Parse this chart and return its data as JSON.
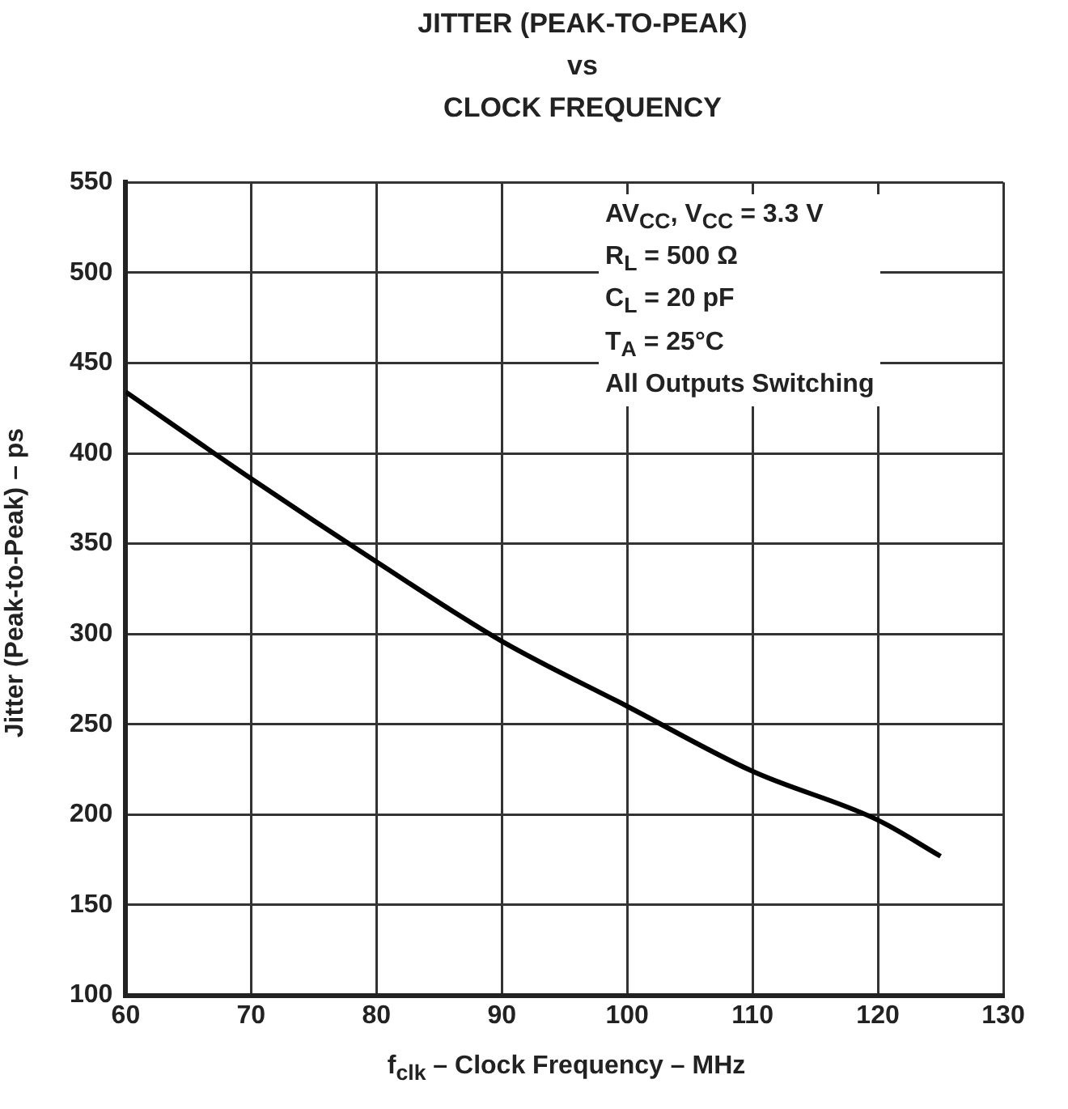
{
  "chart_data": {
    "type": "line",
    "title": "JITTER (PEAK-TO-PEAK)\nvs\nCLOCK FREQUENCY",
    "xlabel": "f$_{clk}$ – Clock Frequency – MHz",
    "ylabel": "Jitter (Peak-to-Peak) – ps",
    "x": [
      60,
      70,
      80,
      90,
      100,
      110,
      120,
      125
    ],
    "series": [
      {
        "color": "#000000",
        "values": [
          434,
          386,
          340,
          296,
          260,
          224,
          197,
          177
        ]
      }
    ],
    "xlim": [
      60,
      130
    ],
    "xticks": [
      60,
      70,
      80,
      90,
      100,
      110,
      120,
      130
    ],
    "ylim": [
      100,
      550
    ],
    "yticks": [
      100,
      150,
      200,
      250,
      300,
      350,
      400,
      450,
      500,
      550
    ],
    "grid": true,
    "legend": false,
    "marker": "none",
    "line_style": "solid",
    "annotations": [
      "AV$_{CC}$, V$_{CC}$ = 3.3 V",
      "R$_{L}$ = 500 Ω",
      "C$_{L}$ = 20 pF",
      "T$_{A}$ = 25°C",
      "All Outputs Switching"
    ]
  }
}
